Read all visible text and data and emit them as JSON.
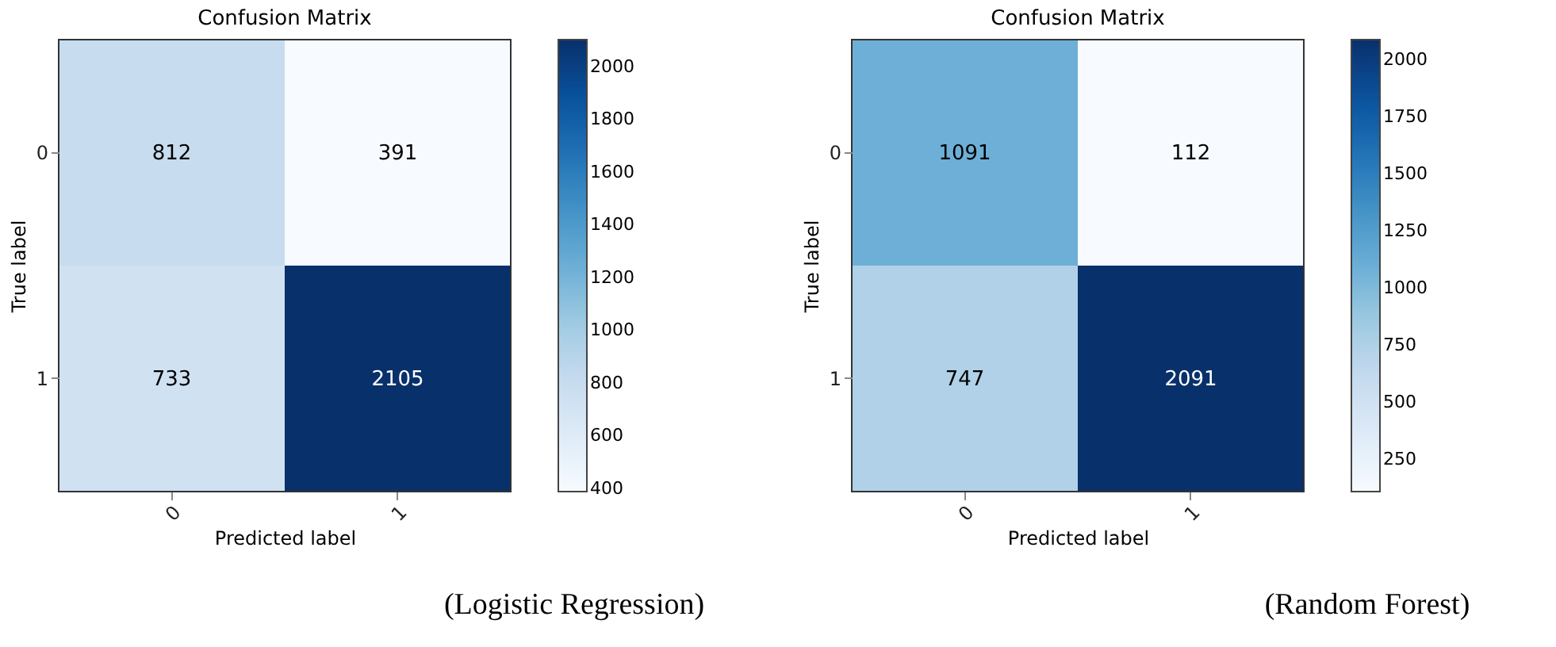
{
  "chart_data": [
    {
      "type": "heatmap",
      "title": "Confusion Matrix",
      "xlabel": "Predicted label",
      "ylabel": "True label",
      "categories": [
        "0",
        "1"
      ],
      "y_categories": [
        "0",
        "1"
      ],
      "cells": [
        [
          812,
          391
        ],
        [
          733,
          2105
        ]
      ],
      "clim": [
        391,
        2105
      ],
      "cticks": [
        400,
        600,
        800,
        1000,
        1200,
        1400,
        1600,
        1800,
        2000
      ],
      "data_labels": true,
      "annotations": [
        "(Logistic Regression)"
      ]
    },
    {
      "type": "heatmap",
      "title": "Confusion Matrix",
      "xlabel": "Predicted label",
      "ylabel": "True label",
      "categories": [
        "0",
        "1"
      ],
      "y_categories": [
        "0",
        "1"
      ],
      "cells": [
        [
          1091,
          112
        ],
        [
          747,
          2091
        ]
      ],
      "clim": [
        112,
        2091
      ],
      "cticks": [
        250,
        500,
        750,
        1000,
        1250,
        1500,
        1750,
        2000
      ],
      "data_labels": true,
      "annotations": [
        "(Random Forest)"
      ]
    }
  ]
}
